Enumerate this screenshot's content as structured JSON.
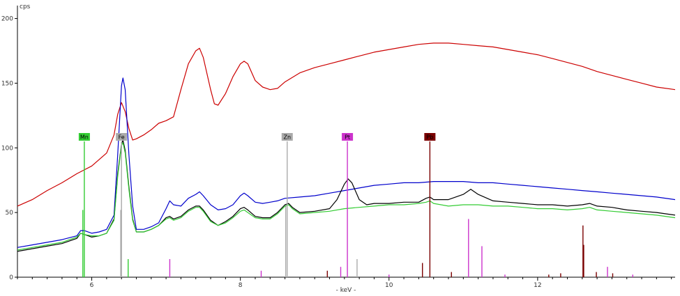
{
  "chart_data": {
    "type": "line",
    "title": "",
    "xlabel": "- keV -",
    "ylabel": "cps",
    "xlim": [
      5.0,
      13.85
    ],
    "ylim": [
      0,
      210
    ],
    "x_ticks": [
      6,
      8,
      10,
      12
    ],
    "y_ticks": [
      0,
      50,
      100,
      150,
      200
    ],
    "grid": false,
    "legend": "none",
    "series": [
      {
        "color": "#cc0000",
        "points": [
          [
            5.0,
            55
          ],
          [
            5.2,
            60
          ],
          [
            5.4,
            67
          ],
          [
            5.6,
            73
          ],
          [
            5.8,
            80
          ],
          [
            6.0,
            86
          ],
          [
            6.2,
            96
          ],
          [
            6.3,
            110
          ],
          [
            6.35,
            126
          ],
          [
            6.4,
            135
          ],
          [
            6.45,
            128
          ],
          [
            6.5,
            115
          ],
          [
            6.55,
            106
          ],
          [
            6.6,
            107
          ],
          [
            6.7,
            110
          ],
          [
            6.8,
            114
          ],
          [
            6.9,
            119
          ],
          [
            7.0,
            121
          ],
          [
            7.1,
            124
          ],
          [
            7.2,
            145
          ],
          [
            7.3,
            165
          ],
          [
            7.4,
            175
          ],
          [
            7.45,
            177
          ],
          [
            7.5,
            170
          ],
          [
            7.6,
            145
          ],
          [
            7.65,
            134
          ],
          [
            7.7,
            133
          ],
          [
            7.8,
            142
          ],
          [
            7.9,
            155
          ],
          [
            8.0,
            165
          ],
          [
            8.05,
            167
          ],
          [
            8.1,
            165
          ],
          [
            8.2,
            152
          ],
          [
            8.3,
            147
          ],
          [
            8.4,
            145
          ],
          [
            8.5,
            146
          ],
          [
            8.6,
            151
          ],
          [
            8.8,
            158
          ],
          [
            9.0,
            162
          ],
          [
            9.2,
            165
          ],
          [
            9.4,
            168
          ],
          [
            9.6,
            171
          ],
          [
            9.8,
            174
          ],
          [
            10.0,
            176
          ],
          [
            10.2,
            178
          ],
          [
            10.4,
            180
          ],
          [
            10.6,
            181
          ],
          [
            10.8,
            181
          ],
          [
            11.0,
            180
          ],
          [
            11.2,
            179
          ],
          [
            11.4,
            178
          ],
          [
            11.6,
            176
          ],
          [
            11.8,
            174
          ],
          [
            12.0,
            172
          ],
          [
            12.2,
            169
          ],
          [
            12.4,
            166
          ],
          [
            12.6,
            163
          ],
          [
            12.8,
            159
          ],
          [
            13.0,
            156
          ],
          [
            13.2,
            153
          ],
          [
            13.4,
            150
          ],
          [
            13.6,
            147
          ],
          [
            13.85,
            145
          ]
        ]
      },
      {
        "color": "#0000cc",
        "points": [
          [
            5.0,
            23
          ],
          [
            5.2,
            25
          ],
          [
            5.4,
            27
          ],
          [
            5.6,
            29
          ],
          [
            5.8,
            32
          ],
          [
            5.85,
            36
          ],
          [
            5.9,
            36
          ],
          [
            6.0,
            34
          ],
          [
            6.1,
            35
          ],
          [
            6.2,
            37
          ],
          [
            6.3,
            48
          ],
          [
            6.35,
            95
          ],
          [
            6.4,
            148
          ],
          [
            6.42,
            154
          ],
          [
            6.45,
            145
          ],
          [
            6.5,
            95
          ],
          [
            6.55,
            55
          ],
          [
            6.6,
            37
          ],
          [
            6.7,
            37
          ],
          [
            6.8,
            39
          ],
          [
            6.9,
            42
          ],
          [
            7.0,
            53
          ],
          [
            7.05,
            59
          ],
          [
            7.1,
            56
          ],
          [
            7.2,
            55
          ],
          [
            7.3,
            61
          ],
          [
            7.4,
            64
          ],
          [
            7.45,
            66
          ],
          [
            7.5,
            63
          ],
          [
            7.6,
            56
          ],
          [
            7.7,
            52
          ],
          [
            7.8,
            53
          ],
          [
            7.9,
            56
          ],
          [
            8.0,
            63
          ],
          [
            8.05,
            65
          ],
          [
            8.1,
            63
          ],
          [
            8.2,
            58
          ],
          [
            8.3,
            57
          ],
          [
            8.4,
            58
          ],
          [
            8.5,
            59
          ],
          [
            8.6,
            61
          ],
          [
            8.8,
            62
          ],
          [
            9.0,
            63
          ],
          [
            9.2,
            65
          ],
          [
            9.4,
            67
          ],
          [
            9.6,
            69
          ],
          [
            9.8,
            71
          ],
          [
            10.0,
            72
          ],
          [
            10.2,
            73
          ],
          [
            10.4,
            73
          ],
          [
            10.6,
            74
          ],
          [
            10.8,
            74
          ],
          [
            11.0,
            74
          ],
          [
            11.2,
            73
          ],
          [
            11.4,
            73
          ],
          [
            11.6,
            72
          ],
          [
            11.8,
            71
          ],
          [
            12.0,
            70
          ],
          [
            12.2,
            69
          ],
          [
            12.4,
            68
          ],
          [
            12.6,
            67
          ],
          [
            12.8,
            66
          ],
          [
            13.0,
            65
          ],
          [
            13.2,
            64
          ],
          [
            13.4,
            63
          ],
          [
            13.6,
            62
          ],
          [
            13.85,
            60
          ]
        ]
      },
      {
        "color": "#000000",
        "points": [
          [
            5.0,
            20
          ],
          [
            5.2,
            22
          ],
          [
            5.4,
            24
          ],
          [
            5.6,
            26
          ],
          [
            5.8,
            30
          ],
          [
            5.85,
            34
          ],
          [
            5.9,
            33
          ],
          [
            6.0,
            31
          ],
          [
            6.1,
            32
          ],
          [
            6.2,
            34
          ],
          [
            6.3,
            45
          ],
          [
            6.35,
            80
          ],
          [
            6.4,
            103
          ],
          [
            6.42,
            106
          ],
          [
            6.45,
            98
          ],
          [
            6.5,
            70
          ],
          [
            6.55,
            45
          ],
          [
            6.6,
            35
          ],
          [
            6.7,
            35
          ],
          [
            6.8,
            37
          ],
          [
            6.9,
            40
          ],
          [
            7.0,
            46
          ],
          [
            7.05,
            47
          ],
          [
            7.1,
            45
          ],
          [
            7.2,
            47
          ],
          [
            7.3,
            52
          ],
          [
            7.4,
            55
          ],
          [
            7.45,
            55
          ],
          [
            7.5,
            52
          ],
          [
            7.6,
            44
          ],
          [
            7.7,
            40
          ],
          [
            7.8,
            43
          ],
          [
            7.9,
            47
          ],
          [
            8.0,
            53
          ],
          [
            8.05,
            54
          ],
          [
            8.1,
            52
          ],
          [
            8.2,
            47
          ],
          [
            8.3,
            46
          ],
          [
            8.4,
            46
          ],
          [
            8.5,
            50
          ],
          [
            8.6,
            56
          ],
          [
            8.65,
            57
          ],
          [
            8.7,
            54
          ],
          [
            8.8,
            50
          ],
          [
            9.0,
            51
          ],
          [
            9.2,
            53
          ],
          [
            9.3,
            60
          ],
          [
            9.4,
            72
          ],
          [
            9.45,
            76
          ],
          [
            9.5,
            73
          ],
          [
            9.6,
            60
          ],
          [
            9.7,
            56
          ],
          [
            9.8,
            57
          ],
          [
            10.0,
            57
          ],
          [
            10.2,
            58
          ],
          [
            10.4,
            58
          ],
          [
            10.5,
            61
          ],
          [
            10.55,
            62
          ],
          [
            10.6,
            60
          ],
          [
            10.8,
            60
          ],
          [
            11.0,
            64
          ],
          [
            11.1,
            68
          ],
          [
            11.2,
            64
          ],
          [
            11.4,
            59
          ],
          [
            11.6,
            58
          ],
          [
            11.8,
            57
          ],
          [
            12.0,
            56
          ],
          [
            12.2,
            56
          ],
          [
            12.4,
            55
          ],
          [
            12.6,
            56
          ],
          [
            12.7,
            57
          ],
          [
            12.8,
            55
          ],
          [
            13.0,
            54
          ],
          [
            13.2,
            52
          ],
          [
            13.4,
            51
          ],
          [
            13.6,
            50
          ],
          [
            13.85,
            48
          ]
        ]
      },
      {
        "color": "#33cc33",
        "points": [
          [
            5.0,
            21
          ],
          [
            5.2,
            23
          ],
          [
            5.4,
            25
          ],
          [
            5.6,
            27
          ],
          [
            5.8,
            31
          ],
          [
            5.85,
            34
          ],
          [
            5.9,
            33
          ],
          [
            6.0,
            32
          ],
          [
            6.1,
            32
          ],
          [
            6.2,
            34
          ],
          [
            6.3,
            44
          ],
          [
            6.35,
            78
          ],
          [
            6.4,
            102
          ],
          [
            6.42,
            104
          ],
          [
            6.45,
            96
          ],
          [
            6.5,
            68
          ],
          [
            6.55,
            44
          ],
          [
            6.6,
            35
          ],
          [
            6.7,
            35
          ],
          [
            6.8,
            37
          ],
          [
            6.9,
            40
          ],
          [
            7.0,
            45
          ],
          [
            7.05,
            46
          ],
          [
            7.1,
            44
          ],
          [
            7.2,
            46
          ],
          [
            7.3,
            51
          ],
          [
            7.4,
            54
          ],
          [
            7.45,
            54
          ],
          [
            7.5,
            51
          ],
          [
            7.6,
            43
          ],
          [
            7.7,
            40
          ],
          [
            7.8,
            42
          ],
          [
            7.9,
            46
          ],
          [
            8.0,
            51
          ],
          [
            8.05,
            52
          ],
          [
            8.1,
            50
          ],
          [
            8.2,
            46
          ],
          [
            8.3,
            45
          ],
          [
            8.4,
            45
          ],
          [
            8.5,
            49
          ],
          [
            8.6,
            55
          ],
          [
            8.65,
            56
          ],
          [
            8.7,
            53
          ],
          [
            8.8,
            49
          ],
          [
            9.0,
            50
          ],
          [
            9.2,
            51
          ],
          [
            9.4,
            53
          ],
          [
            9.6,
            54
          ],
          [
            9.8,
            55
          ],
          [
            10.0,
            56
          ],
          [
            10.2,
            56
          ],
          [
            10.4,
            57
          ],
          [
            10.5,
            58
          ],
          [
            10.55,
            59
          ],
          [
            10.6,
            57
          ],
          [
            10.8,
            55
          ],
          [
            11.0,
            56
          ],
          [
            11.2,
            56
          ],
          [
            11.4,
            55
          ],
          [
            11.6,
            55
          ],
          [
            11.8,
            54
          ],
          [
            12.0,
            53
          ],
          [
            12.2,
            53
          ],
          [
            12.4,
            52
          ],
          [
            12.6,
            53
          ],
          [
            12.7,
            54
          ],
          [
            12.8,
            52
          ],
          [
            13.0,
            51
          ],
          [
            13.2,
            50
          ],
          [
            13.4,
            49
          ],
          [
            13.6,
            48
          ],
          [
            13.85,
            46
          ]
        ]
      }
    ],
    "element_markers": [
      {
        "label": "Mn",
        "energy": 5.9,
        "color": "#33cc33"
      },
      {
        "label": "Fe",
        "energy": 6.4,
        "color": "#aaaaaa"
      },
      {
        "label": "Zn",
        "energy": 8.63,
        "color": "#aaaaaa"
      },
      {
        "label": "Pt",
        "energy": 9.44,
        "color": "#cc33cc"
      },
      {
        "label": "Pb",
        "energy": 10.55,
        "color": "#7a0000"
      }
    ],
    "marker_height": 105,
    "reference_lines": [
      {
        "energy": 5.88,
        "height": 52,
        "color": "#33cc33"
      },
      {
        "energy": 6.39,
        "height": 52,
        "color": "#aaaaaa"
      },
      {
        "energy": 6.49,
        "height": 14,
        "color": "#33cc33"
      },
      {
        "energy": 7.05,
        "height": 14,
        "color": "#cc33cc"
      },
      {
        "energy": 8.28,
        "height": 5,
        "color": "#cc33cc"
      },
      {
        "energy": 8.61,
        "height": 55,
        "color": "#aaaaaa"
      },
      {
        "energy": 9.17,
        "height": 5,
        "color": "#7a0000"
      },
      {
        "energy": 9.35,
        "height": 8,
        "color": "#cc33cc"
      },
      {
        "energy": 9.57,
        "height": 14,
        "color": "#aaaaaa"
      },
      {
        "energy": 10.0,
        "height": 2,
        "color": "#cc33cc"
      },
      {
        "energy": 10.45,
        "height": 11,
        "color": "#7a0000"
      },
      {
        "energy": 10.84,
        "height": 4,
        "color": "#7a0000"
      },
      {
        "energy": 11.07,
        "height": 45,
        "color": "#cc33cc"
      },
      {
        "energy": 11.25,
        "height": 24,
        "color": "#cc33cc"
      },
      {
        "energy": 11.56,
        "height": 2,
        "color": "#cc33cc"
      },
      {
        "energy": 12.15,
        "height": 2,
        "color": "#7a0000"
      },
      {
        "energy": 12.31,
        "height": 3,
        "color": "#7a0000"
      },
      {
        "energy": 12.61,
        "height": 40,
        "color": "#7a0000"
      },
      {
        "energy": 12.62,
        "height": 25,
        "color": "#7a0000"
      },
      {
        "energy": 12.79,
        "height": 4,
        "color": "#7a0000"
      },
      {
        "energy": 12.94,
        "height": 8,
        "color": "#cc33cc"
      },
      {
        "energy": 13.01,
        "height": 3,
        "color": "#7a0000"
      },
      {
        "energy": 13.28,
        "height": 2,
        "color": "#cc33cc"
      }
    ]
  }
}
